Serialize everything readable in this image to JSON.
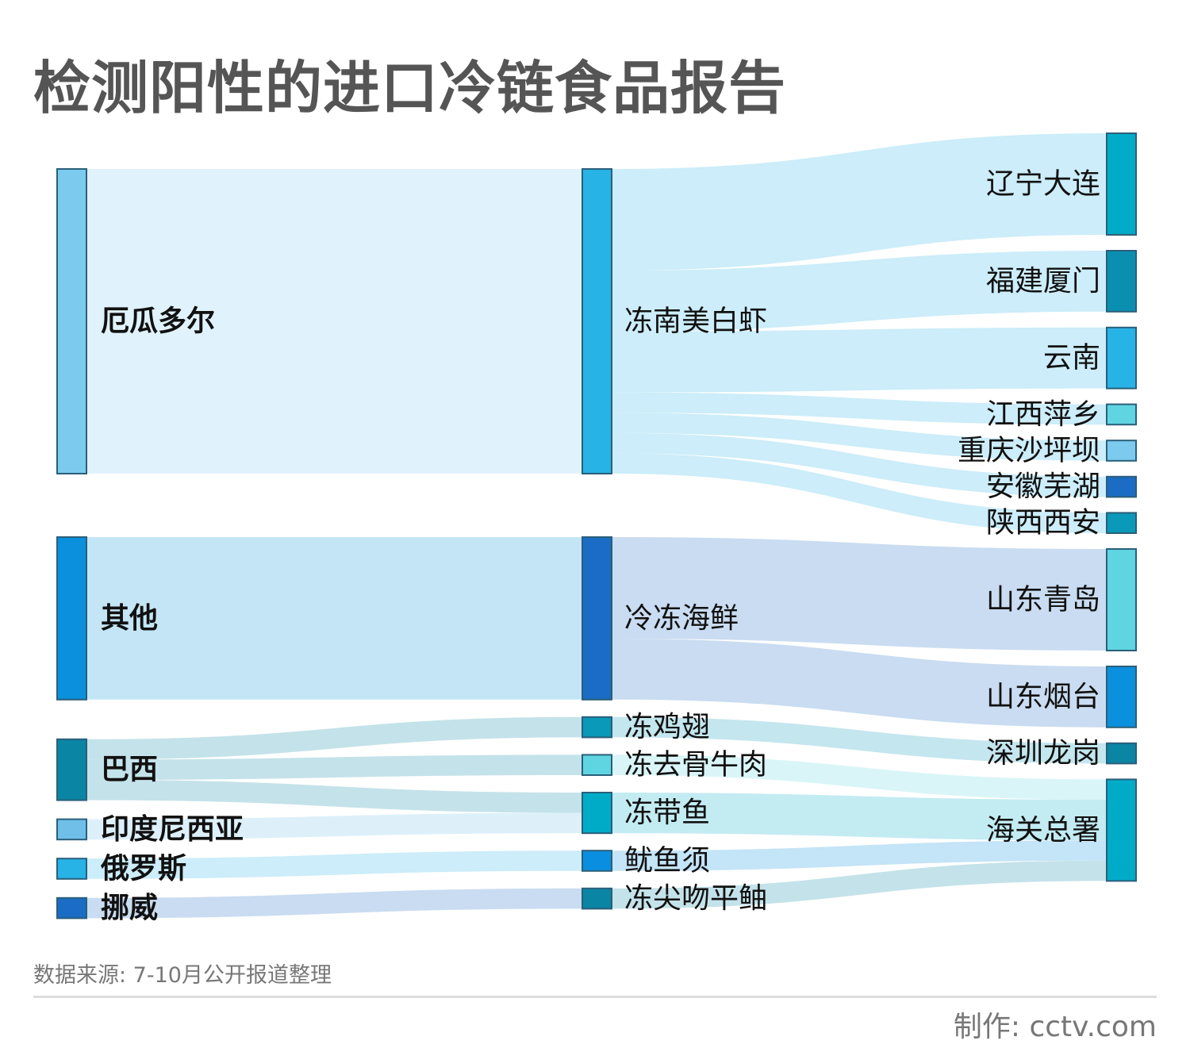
{
  "title": "检测阳性的进口冷链食品报告",
  "source": "数据来源: 7-10月公开报道整理",
  "credit": "制作: cctv.com",
  "chart_data": {
    "type": "sankey",
    "columns": [
      [
        "厄瓜多尔",
        "其他",
        "巴西",
        "印度尼西亚",
        "俄罗斯",
        "挪威"
      ],
      [
        "冻南美白虾",
        "冷冻海鲜",
        "冻鸡翅",
        "冻去骨牛肉",
        "冻带鱼",
        "鱿鱼须",
        "冻尖吻平鲉"
      ],
      [
        "辽宁大连",
        "福建厦门",
        "云南",
        "江西萍乡",
        "重庆沙坪坝",
        "安徽芜湖",
        "陕西西安",
        "山东青岛",
        "山东烟台",
        "深圳龙岗",
        "海关总署"
      ]
    ],
    "node_colors": {
      "厄瓜多尔": "#7ccbef",
      "其他": "#0a90dc",
      "巴西": "#0a85a3",
      "印度尼西亚": "#6fbfe8",
      "俄罗斯": "#27b3e5",
      "挪威": "#1a6cc4",
      "冻南美白虾": "#27b3e5",
      "冷冻海鲜": "#1a6cc4",
      "冻鸡翅": "#0a99b8",
      "冻去骨牛肉": "#5fd5e2",
      "冻带鱼": "#00abc8",
      "鱿鱼须": "#0a8ee0",
      "冻尖吻平鲉": "#0a85a3",
      "辽宁大连": "#00abc8",
      "福建厦门": "#0a8fb0",
      "云南": "#27b3e5",
      "江西萍乡": "#5fd5e2",
      "重庆沙坪坝": "#7ccbef",
      "安徽芜湖": "#1a6cc4",
      "陕西西安": "#0a99b8",
      "山东青岛": "#5fd5e2",
      "山东烟台": "#0a90dc",
      "深圳龙岗": "#0a85a3",
      "海关总署": "#00abc8"
    },
    "links": [
      {
        "source": "厄瓜多尔",
        "target": "冻南美白虾",
        "value": 15
      },
      {
        "source": "其他",
        "target": "冷冻海鲜",
        "value": 8
      },
      {
        "source": "巴西",
        "target": "冻鸡翅",
        "value": 1
      },
      {
        "source": "巴西",
        "target": "冻去骨牛肉",
        "value": 1
      },
      {
        "source": "巴西",
        "target": "冻带鱼",
        "value": 1
      },
      {
        "source": "印度尼西亚",
        "target": "冻带鱼",
        "value": 1
      },
      {
        "source": "俄罗斯",
        "target": "鱿鱼须",
        "value": 1
      },
      {
        "source": "挪威",
        "target": "冻尖吻平鲉",
        "value": 1
      },
      {
        "source": "冻南美白虾",
        "target": "辽宁大连",
        "value": 5
      },
      {
        "source": "冻南美白虾",
        "target": "福建厦门",
        "value": 3
      },
      {
        "source": "冻南美白虾",
        "target": "云南",
        "value": 3
      },
      {
        "source": "冻南美白虾",
        "target": "江西萍乡",
        "value": 1
      },
      {
        "source": "冻南美白虾",
        "target": "重庆沙坪坝",
        "value": 1
      },
      {
        "source": "冻南美白虾",
        "target": "安徽芜湖",
        "value": 1
      },
      {
        "source": "冻南美白虾",
        "target": "陕西西安",
        "value": 1
      },
      {
        "source": "冷冻海鲜",
        "target": "山东青岛",
        "value": 5
      },
      {
        "source": "冷冻海鲜",
        "target": "山东烟台",
        "value": 3
      },
      {
        "source": "冻鸡翅",
        "target": "深圳龙岗",
        "value": 1
      },
      {
        "source": "冻去骨牛肉",
        "target": "海关总署",
        "value": 1
      },
      {
        "source": "冻带鱼",
        "target": "海关总署",
        "value": 2
      },
      {
        "source": "鱿鱼须",
        "target": "海关总署",
        "value": 1
      },
      {
        "source": "冻尖吻平鲉",
        "target": "海关总署",
        "value": 1
      }
    ]
  }
}
